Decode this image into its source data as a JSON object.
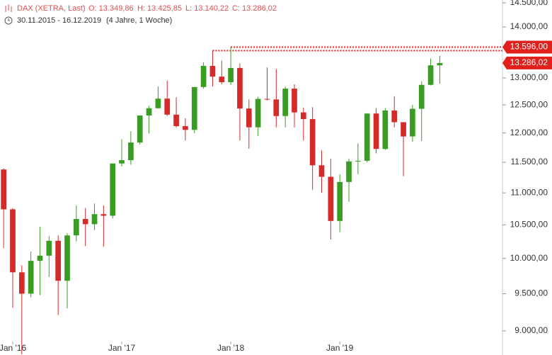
{
  "chart_data": {
    "type": "candlestick",
    "info": {
      "name": "DAX (XETRA, Last)",
      "open": "O: 13.349,86",
      "high": "H: 13.425,85",
      "low": "L: 13.140,22",
      "close": "C: 13.286,02",
      "range": "30.11.2015 - 16.12.2019",
      "span": "(4 Jahre, 1 Woche)"
    },
    "x": [
      0,
      1,
      2,
      3,
      4,
      5,
      6,
      7,
      8,
      9,
      10,
      11,
      12,
      13,
      14,
      15,
      16,
      17,
      18,
      19,
      20,
      21,
      22,
      23,
      24,
      25,
      26,
      27,
      28,
      29,
      30,
      31,
      32,
      33,
      34,
      35,
      36,
      37,
      38,
      39,
      40,
      41,
      42,
      43,
      44,
      45,
      46,
      47,
      48
    ],
    "open": [
      11380,
      10740,
      9800,
      9500,
      9965,
      10040,
      10260,
      9680,
      10340,
      10590,
      10510,
      10665,
      10640,
      11480,
      11535,
      11835,
      12310,
      12440,
      12615,
      12325,
      12120,
      12055,
      12830,
      13230,
      13025,
      12920,
      13190,
      12435,
      12100,
      12610,
      12600,
      12300,
      12800,
      12365,
      12245,
      11450,
      11260,
      10560,
      11175,
      11515,
      11525,
      12345,
      11725,
      12400,
      12190,
      11940,
      12430,
      12870,
      13240
    ],
    "high": [
      11400,
      10760,
      9900,
      10100,
      10470,
      10330,
      10340,
      10370,
      10800,
      10760,
      10830,
      10800,
      11480,
      11890,
      12030,
      12310,
      12480,
      12840,
      12950,
      12640,
      12260,
      12830,
      13300,
      13526,
      13330,
      13596,
      13280,
      12600,
      12650,
      13200,
      13170,
      12840,
      12880,
      12450,
      12460,
      11700,
      11560,
      11300,
      11560,
      11820,
      12350,
      12440,
      12440,
      12660,
      12190,
      12500,
      12940,
      13375,
      13425
    ],
    "low": [
      10150,
      9310,
      8700,
      9450,
      9480,
      9735,
      9210,
      9300,
      10250,
      10180,
      10420,
      10170,
      10600,
      11430,
      11460,
      11800,
      11990,
      12440,
      12300,
      12100,
      11870,
      12000,
      12800,
      12840,
      12880,
      12870,
      11870,
      11730,
      11950,
      12580,
      12100,
      12100,
      12100,
      11870,
      11050,
      11000,
      10280,
      10390,
      10860,
      11300,
      11500,
      11650,
      11710,
      12100,
      11270,
      11850,
      11860,
      12860,
      12890
    ],
    "close": [
      10740,
      9800,
      9500,
      9965,
      10040,
      10260,
      9680,
      10340,
      10590,
      10510,
      10665,
      10640,
      11480,
      11535,
      11835,
      12310,
      12440,
      12615,
      12325,
      12120,
      12055,
      12830,
      13230,
      13025,
      12920,
      13190,
      12435,
      12100,
      12610,
      12600,
      12300,
      12800,
      12365,
      12245,
      11450,
      11260,
      10560,
      11175,
      11515,
      11525,
      12345,
      11725,
      12400,
      12190,
      11940,
      12430,
      12870,
      13240,
      13286
    ],
    "up_color": "#3a9d23",
    "down_color": "#d42a2a",
    "xlim": [
      -0.4,
      54.9
    ],
    "xticks": [
      {
        "value": 1,
        "label": "Jan '16"
      },
      {
        "value": 13,
        "label": "Jan '17"
      },
      {
        "value": 25,
        "label": "Jan '18"
      },
      {
        "value": 37,
        "label": "Jan '19"
      }
    ],
    "ylim": [
      8690,
      14560
    ],
    "log_scale": true,
    "yticks": [
      {
        "value": 14500,
        "label": "14.500,00"
      },
      {
        "value": 14000,
        "label": "14.000,00"
      },
      {
        "value": 13000,
        "label": "13.000,00"
      },
      {
        "value": 12500,
        "label": "12.500,00"
      },
      {
        "value": 12000,
        "label": "12.000,00"
      },
      {
        "value": 11500,
        "label": "11.500,00"
      },
      {
        "value": 11000,
        "label": "11.000,00"
      },
      {
        "value": 10500,
        "label": "10.500,00"
      },
      {
        "value": 10000,
        "label": "10.000,00"
      },
      {
        "value": 9500,
        "label": "9.500,00"
      },
      {
        "value": 9000,
        "label": "9.000,00"
      }
    ],
    "resistance_lines": [
      {
        "value": 13596,
        "from": 25
      },
      {
        "value": 13526,
        "from": 23
      }
    ],
    "price_labels": [
      {
        "value": 13596,
        "label": "13.596,00"
      },
      {
        "value": 13286.02,
        "label": "13.286,02"
      }
    ],
    "line_color": "#e0201b"
  }
}
